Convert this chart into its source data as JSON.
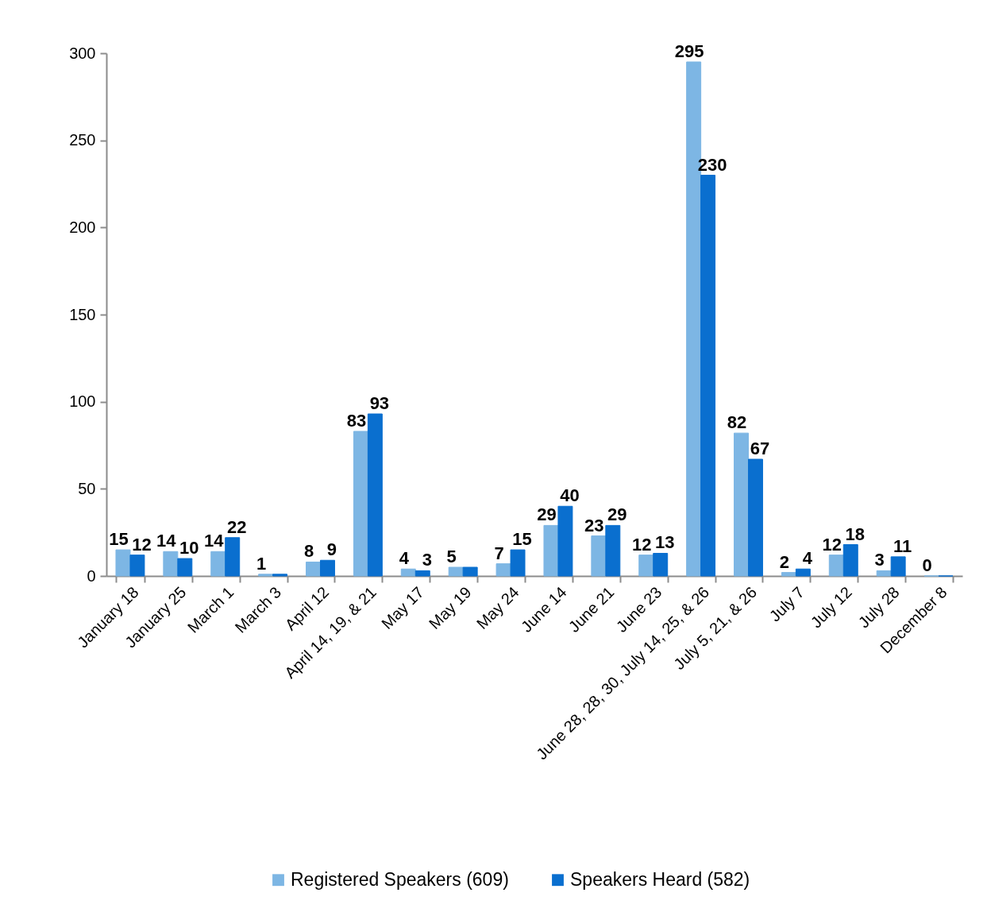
{
  "chart_data": {
    "type": "bar",
    "categories": [
      "January 18",
      "January 25",
      "March 1",
      "March 3",
      "April 12",
      "April 14, 19, & 21",
      "May 17",
      "May 19",
      "May 24",
      "June 14",
      "June 21",
      "June 23",
      "June 28, 28, 30, July 14, 25, & 26",
      "July 5, 21, & 26",
      "July 7",
      "July 12",
      "July 28",
      "December 8"
    ],
    "series": [
      {
        "name": "Registered Speakers (609)",
        "color": "#7db6e4",
        "values": [
          15,
          14,
          14,
          1,
          8,
          83,
          4,
          5,
          7,
          29,
          23,
          12,
          295,
          82,
          2,
          12,
          3,
          0
        ],
        "value_labels": [
          "15",
          "14",
          "14",
          "1",
          "8",
          "83",
          "4",
          "5",
          "7",
          "29",
          "23",
          "12",
          "295",
          "82",
          "2",
          "12",
          "3",
          "0"
        ]
      },
      {
        "name": "Speakers Heard (582)",
        "color": "#0a6fcf",
        "values": [
          12,
          10,
          22,
          1,
          9,
          93,
          3,
          5,
          15,
          40,
          29,
          13,
          230,
          67,
          4,
          18,
          11,
          0
        ],
        "value_labels": [
          "12",
          "10",
          "22",
          null,
          "9",
          "93",
          "3",
          null,
          "15",
          "40",
          "29",
          "13",
          "230",
          "67",
          "4",
          "18",
          "11",
          null
        ]
      }
    ],
    "ylim": [
      0,
      300
    ],
    "yticks": [
      0,
      50,
      100,
      150,
      200,
      250,
      300
    ],
    "grid": false,
    "legend": "bottom"
  }
}
